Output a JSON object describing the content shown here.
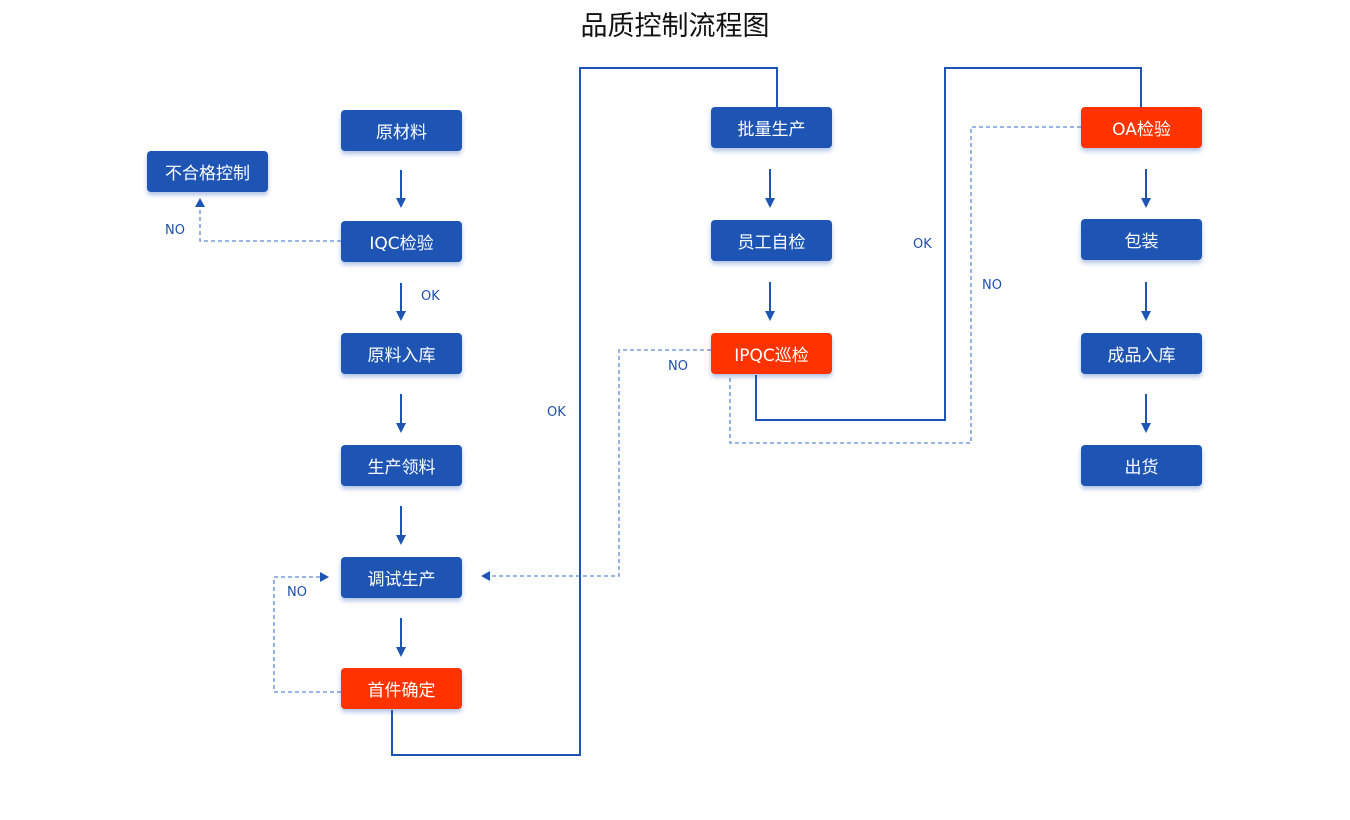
{
  "title": "品质控制流程图",
  "colors": {
    "normal": "#1e55b5",
    "checkpoint": "#ff3300",
    "line": "#1e55b5",
    "dashed": "#5c8ad6"
  },
  "nodes": {
    "raw_material": "原材料",
    "iqc": "IQC检验",
    "nonconforming": "不合格控制",
    "raw_storage": "原料入库",
    "material_pick": "生产领料",
    "trial_production": "调试生产",
    "first_article": "首件确定",
    "mass_production": "批量生产",
    "self_check": "员工自检",
    "ipqc": "IPQC巡检",
    "oa": "OA检验",
    "packing": "包装",
    "finished_storage": "成品入库",
    "shipping": "出货"
  },
  "labels": {
    "iqc_no": "NO",
    "iqc_ok": "OK",
    "first_article_ok": "OK",
    "ipqc_no": "NO",
    "ipqc_ok": "OK",
    "oa_no": "NO",
    "first_article_no": "NO"
  }
}
